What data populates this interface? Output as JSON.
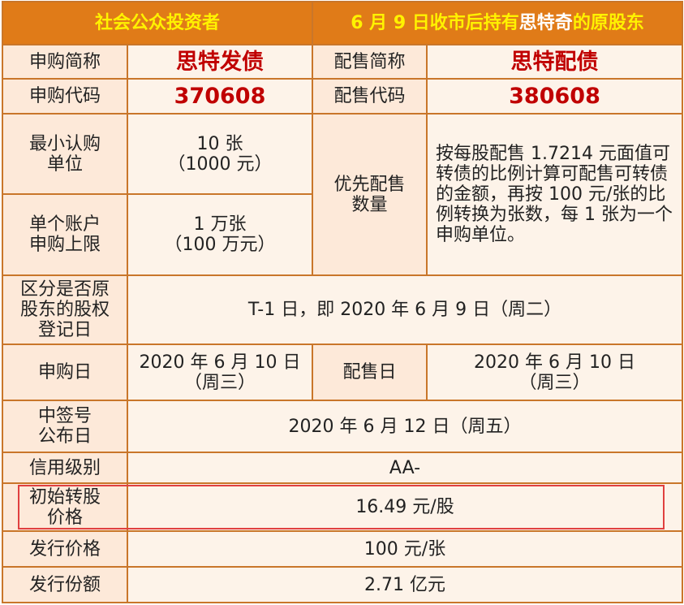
{
  "header": {
    "public": "社会公众投资者",
    "holders_pre": "6 月 9 日收市后持有",
    "holders_name": "思特奇",
    "holders_post": "的原股东"
  },
  "rows": {
    "sub_name_label": "申购简称",
    "sub_name": "思特发债",
    "allot_name_label": "配售简称",
    "allot_name": "思特配债",
    "sub_code_label": "申购代码",
    "sub_code": "370608",
    "allot_code_label": "配售代码",
    "allot_code": "380608",
    "min_unit_label": "最小认购\n单位",
    "min_unit": "10 张\n（1000 元）",
    "priority_label": "优先配售\n数量",
    "priority_desc": "按每股配售 1.7214 元面值可转债的比例计算可配售可转债的金额，再按 100 元/张的比例转换为张数，每 1 张为一个申购单位。",
    "limit_label": "单个账户\n申购上限",
    "limit": "1 万张\n（100 万元）",
    "record_label": "区分是否原\n股东的股权\n登记日",
    "record": "T-1 日，即 2020 年 6 月 9 日（周二）",
    "sub_day_label": "申购日",
    "sub_day": "2020 年 6 月 10 日\n（周三）",
    "allot_day_label": "配售日",
    "allot_day": "2020 年 6 月 10 日\n（周三）",
    "lottery_label": "中签号\n公布日",
    "lottery": "2020 年 6 月 12 日（周五）",
    "rating_label": "信用级别",
    "rating": "AA-",
    "conv_label": "初始转股\n价格",
    "conv": "16.49 元/股",
    "price_label": "发行价格",
    "price": "100 元/张",
    "size_label": "发行份额",
    "size": "2.71 亿元"
  }
}
